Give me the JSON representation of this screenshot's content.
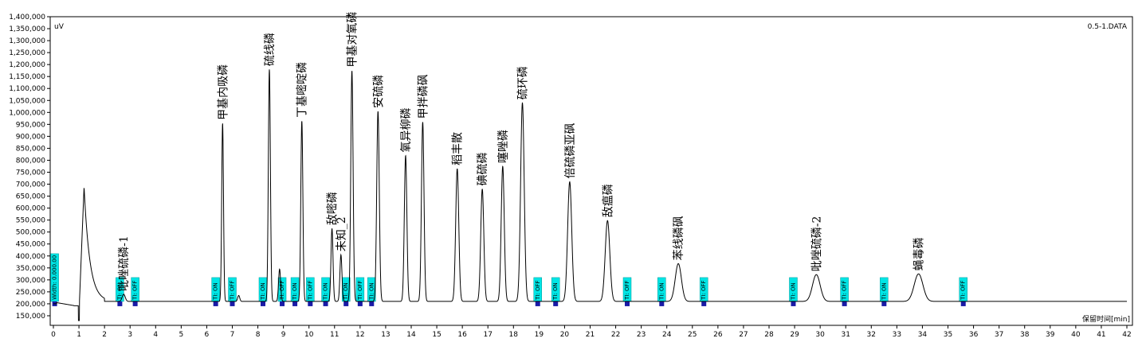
{
  "chart_data": {
    "type": "line",
    "title": "",
    "file_label": "0.5-1.DATA",
    "y_unit": "uV",
    "xlabel": "保留时间[min]",
    "xlim": [
      0,
      42
    ],
    "ylim": [
      110000,
      1400000
    ],
    "x_ticks": [
      0,
      1,
      2,
      3,
      4,
      5,
      6,
      7,
      8,
      9,
      10,
      11,
      12,
      13,
      14,
      15,
      16,
      17,
      18,
      19,
      20,
      21,
      22,
      23,
      24,
      25,
      26,
      27,
      28,
      29,
      30,
      31,
      32,
      33,
      34,
      35,
      36,
      37,
      38,
      39,
      40,
      41,
      42
    ],
    "y_ticks": [
      150000,
      200000,
      250000,
      300000,
      350000,
      400000,
      450000,
      500000,
      550000,
      600000,
      650000,
      700000,
      750000,
      800000,
      850000,
      900000,
      950000,
      1000000,
      1050000,
      1100000,
      1150000,
      1200000,
      1250000,
      1300000,
      1350000,
      1400000
    ],
    "y_tick_labels": [
      "150,000",
      "200,000",
      "250,000",
      "300,000",
      "350,000",
      "400,000",
      "450,000",
      "500,000",
      "550,000",
      "600,000",
      "650,000",
      "700,000",
      "750,000",
      "800,000",
      "850,000",
      "900,000",
      "950,000",
      "1,000,000",
      "1,050,000",
      "1,100,000",
      "1,150,000",
      "1,200,000",
      "1,250,000",
      "1,300,000",
      "1,350,000",
      "1,400,000"
    ],
    "baseline": 210000,
    "grid": false,
    "line_color": "#000000",
    "peaks": [
      {
        "name": "吡唑硫磷-1",
        "rt": 2.75,
        "height": 240000,
        "width": 0.06
      },
      {
        "name": "甲基内吸磷",
        "rt": 6.62,
        "height": 955000,
        "width": 0.035
      },
      {
        "name": "硫线磷",
        "rt": 8.45,
        "height": 1180000,
        "width": 0.04
      },
      {
        "name": "丁基嘧啶磷",
        "rt": 9.72,
        "height": 965000,
        "width": 0.04
      },
      {
        "name": "敌嘧磷",
        "rt": 10.9,
        "height": 515000,
        "width": 0.04
      },
      {
        "name": "未知_2",
        "rt": 11.25,
        "height": 405000,
        "width": 0.04
      },
      {
        "name": "甲基对氧磷",
        "rt": 11.68,
        "height": 1175000,
        "width": 0.045
      },
      {
        "name": "安硫磷",
        "rt": 12.7,
        "height": 1005000,
        "width": 0.05
      },
      {
        "name": "氧异柳磷",
        "rt": 13.78,
        "height": 820000,
        "width": 0.05
      },
      {
        "name": "甲拌磷砜",
        "rt": 14.45,
        "height": 960000,
        "width": 0.05
      },
      {
        "name": "稻丰散",
        "rt": 15.8,
        "height": 765000,
        "width": 0.06
      },
      {
        "name": "碘硫磷",
        "rt": 16.78,
        "height": 680000,
        "width": 0.06
      },
      {
        "name": "噻唑磷",
        "rt": 17.58,
        "height": 775000,
        "width": 0.06
      },
      {
        "name": "硫环磷",
        "rt": 18.35,
        "height": 1040000,
        "width": 0.07
      },
      {
        "name": "倍硫磷亚砜",
        "rt": 20.2,
        "height": 710000,
        "width": 0.08
      },
      {
        "name": "敌瘟磷",
        "rt": 21.68,
        "height": 548000,
        "width": 0.09
      },
      {
        "name": "苯线磷砜",
        "rt": 24.45,
        "height": 368000,
        "width": 0.12
      },
      {
        "name": "吡唑硫磷-2",
        "rt": 29.85,
        "height": 322000,
        "width": 0.15
      },
      {
        "name": "蝇毒磷",
        "rt": 33.85,
        "height": 325000,
        "width": 0.17
      }
    ],
    "unlabeled_peaks": [
      {
        "rt": 1.2,
        "height": 690000
      },
      {
        "rt": 8.85,
        "height": 345000
      },
      {
        "rt": 7.25,
        "height": 235000
      }
    ],
    "events": [
      {
        "text": "Width: 0.000.00",
        "rt": 0.05
      },
      {
        "text": "TI: ON",
        "rt": 2.6
      },
      {
        "text": "TI: OFF",
        "rt": 3.2
      },
      {
        "text": "TI: ON",
        "rt": 6.35
      },
      {
        "text": "TI: OFF",
        "rt": 7.0
      },
      {
        "text": "TI: ON",
        "rt": 8.2
      },
      {
        "text": "TI: OFF",
        "rt": 8.95
      },
      {
        "text": "TI: ON",
        "rt": 9.45
      },
      {
        "text": "TI: OFF",
        "rt": 10.05
      },
      {
        "text": "TI: ON",
        "rt": 10.65
      },
      {
        "text": "TI: ON",
        "rt": 11.45
      },
      {
        "text": "TI: OFF",
        "rt": 12.0
      },
      {
        "text": "TI: ON",
        "rt": 12.45
      },
      {
        "text": "TI: OFF",
        "rt": 18.95
      },
      {
        "text": "TI: ON",
        "rt": 19.65
      },
      {
        "text": "TI: OFF",
        "rt": 22.45
      },
      {
        "text": "TI: ON",
        "rt": 23.8
      },
      {
        "text": "TI: OFF",
        "rt": 25.45
      },
      {
        "text": "TI: ON",
        "rt": 28.95
      },
      {
        "text": "TI: OFF",
        "rt": 30.95
      },
      {
        "text": "TI: ON",
        "rt": 32.5
      },
      {
        "text": "TI: OFF",
        "rt": 35.6
      }
    ],
    "event_color": "#00e5e5"
  }
}
